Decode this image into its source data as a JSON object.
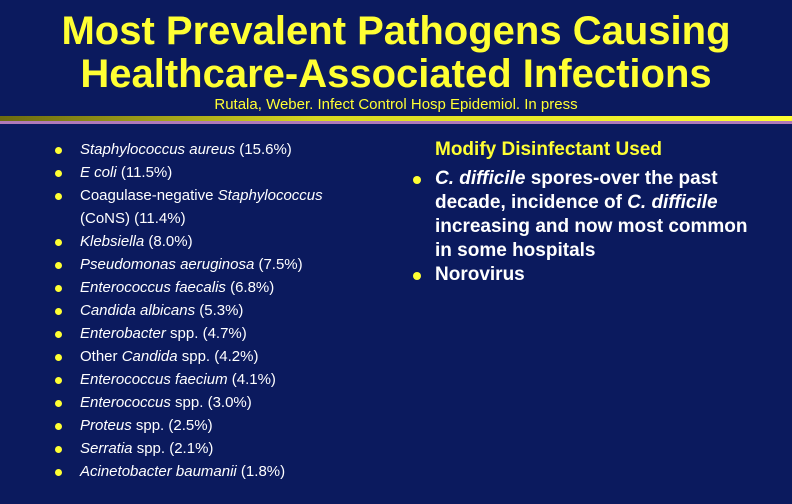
{
  "title": "Most Prevalent Pathogens Causing Healthcare-Associated Infections",
  "subtitle": "Rutala, Weber. Infect Control Hosp Epidemiol. In press",
  "pathogens": [
    {
      "italic": "Staphylococcus aureus",
      "rest": " (15.6%)"
    },
    {
      "italic": "E coli",
      "rest": " (11.5%)"
    },
    {
      "pre": "Coagulase-negative ",
      "italic": "Staphylococcus",
      "rest": " (CoNS) (11.4%)"
    },
    {
      "italic": " Klebsiella",
      "rest": " (8.0%)"
    },
    {
      "italic": "Pseudomonas aeruginosa",
      "rest": " (7.5%)"
    },
    {
      "italic": " Enterococcus faecalis",
      "rest": " (6.8%)"
    },
    {
      "italic": "Candida albicans",
      "rest": " (5.3%)"
    },
    {
      "italic": "Enterobacter",
      "rest": " spp. (4.7%)"
    },
    {
      "pre": "Other ",
      "italic": "Candida",
      "rest": " spp. (4.2%)"
    },
    {
      "italic": "Enterococcus faecium",
      "rest": " (4.1%)"
    },
    {
      "italic": "Enterococcus",
      "rest": " spp. (3.0%)"
    },
    {
      "italic": "Proteus",
      "rest": " spp. (2.5%)"
    },
    {
      "italic": "Serratia",
      "rest": " spp. (2.1%)"
    },
    {
      "italic": "Acinetobacter  baumanii",
      "rest": " (1.8%)"
    }
  ],
  "right": {
    "heading": "Modify Disinfectant Used",
    "item1": {
      "a": "C. difficile",
      "b": " spores-over the past decade, incidence of ",
      "c": "C. difficile",
      "d": " increasing and now most common in some hospitals"
    },
    "item2": "Norovirus"
  },
  "colors": {
    "background": "#0b1a5e",
    "accent": "#ffff33",
    "text": "#ffffff"
  }
}
